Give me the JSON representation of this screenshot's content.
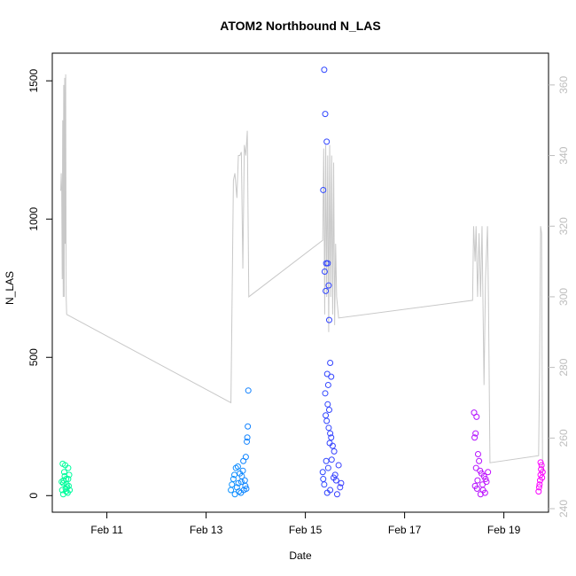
{
  "chart_data": {
    "type": "scatter",
    "title": "ATOM2 Northbound N_LAS",
    "xlabel": "Date",
    "ylabel": "N_LAS",
    "x_axis": {
      "ticks": [
        {
          "day": 11,
          "label": "Feb 11"
        },
        {
          "day": 13,
          "label": "Feb 13"
        },
        {
          "day": 15,
          "label": "Feb 15"
        },
        {
          "day": 17,
          "label": "Feb 17"
        },
        {
          "day": 19,
          "label": "Feb 19"
        }
      ],
      "range_days": [
        9.9,
        19.9
      ]
    },
    "y_axis_left": {
      "ticks": [
        0,
        500,
        1000,
        1500
      ],
      "range": [
        -60,
        1600
      ]
    },
    "y_axis_right": {
      "ticks": [
        240,
        260,
        280,
        300,
        320,
        340,
        360
      ],
      "range": [
        239,
        369
      ],
      "color": "#bdbdbd"
    },
    "colors": {
      "point_gradient": [
        "#00ff99",
        "#00bfff",
        "#1f4fff",
        "#7a1fff",
        "#ff00ff"
      ],
      "line": "#c8c8c8"
    },
    "series": [
      {
        "kind": "points",
        "points": [
          [
            10.1,
            20
          ],
          [
            10.12,
            45
          ],
          [
            10.14,
            85
          ],
          [
            10.16,
            110
          ],
          [
            10.18,
            60
          ],
          [
            10.2,
            30
          ],
          [
            10.22,
            100
          ],
          [
            10.24,
            75
          ],
          [
            10.11,
            115
          ],
          [
            10.13,
            55
          ],
          [
            10.17,
            25
          ],
          [
            10.21,
            10
          ],
          [
            10.19,
            40
          ],
          [
            10.15,
            70
          ],
          [
            10.23,
            35
          ],
          [
            10.09,
            50
          ],
          [
            10.25,
            20
          ],
          [
            10.12,
            5
          ],
          [
            10.18,
            15
          ],
          [
            10.22,
            60
          ],
          [
            13.5,
            20
          ],
          [
            13.55,
            60
          ],
          [
            13.6,
            100
          ],
          [
            13.62,
            30
          ],
          [
            13.65,
            45
          ],
          [
            13.68,
            80
          ],
          [
            13.7,
            10
          ],
          [
            13.72,
            70
          ],
          [
            13.75,
            125
          ],
          [
            13.78,
            55
          ],
          [
            13.8,
            140
          ],
          [
            13.82,
            195
          ],
          [
            13.83,
            210
          ],
          [
            13.84,
            250
          ],
          [
            13.85,
            380
          ],
          [
            13.58,
            5
          ],
          [
            13.66,
            15
          ],
          [
            13.74,
            90
          ],
          [
            13.52,
            40
          ],
          [
            13.79,
            35
          ],
          [
            13.81,
            25
          ],
          [
            13.64,
            105
          ],
          [
            13.71,
            50
          ],
          [
            13.76,
            20
          ],
          [
            13.57,
            75
          ],
          [
            15.38,
            1540
          ],
          [
            15.4,
            1380
          ],
          [
            15.43,
            1280
          ],
          [
            15.36,
            1105
          ],
          [
            15.42,
            840
          ],
          [
            15.45,
            840
          ],
          [
            15.39,
            810
          ],
          [
            15.47,
            760
          ],
          [
            15.41,
            740
          ],
          [
            15.48,
            635
          ],
          [
            15.5,
            480
          ],
          [
            15.44,
            440
          ],
          [
            15.52,
            430
          ],
          [
            15.46,
            400
          ],
          [
            15.4,
            370
          ],
          [
            15.45,
            330
          ],
          [
            15.48,
            310
          ],
          [
            15.41,
            290
          ],
          [
            15.43,
            270
          ],
          [
            15.47,
            245
          ],
          [
            15.5,
            225
          ],
          [
            15.52,
            210
          ],
          [
            15.49,
            190
          ],
          [
            15.55,
            180
          ],
          [
            15.58,
            160
          ],
          [
            15.35,
            85
          ],
          [
            15.42,
            125
          ],
          [
            15.46,
            100
          ],
          [
            15.53,
            130
          ],
          [
            15.6,
            75
          ],
          [
            15.38,
            40
          ],
          [
            15.5,
            20
          ],
          [
            15.62,
            55
          ],
          [
            15.67,
            110
          ],
          [
            15.7,
            30
          ],
          [
            15.44,
            10
          ],
          [
            15.57,
            65
          ],
          [
            15.64,
            5
          ],
          [
            15.36,
            60
          ],
          [
            15.72,
            45
          ],
          [
            18.4,
            300
          ],
          [
            18.45,
            285
          ],
          [
            18.43,
            225
          ],
          [
            18.41,
            210
          ],
          [
            18.48,
            150
          ],
          [
            18.5,
            125
          ],
          [
            18.44,
            100
          ],
          [
            18.52,
            90
          ],
          [
            18.55,
            80
          ],
          [
            18.6,
            70
          ],
          [
            18.47,
            55
          ],
          [
            18.42,
            35
          ],
          [
            18.58,
            20
          ],
          [
            18.62,
            10
          ],
          [
            18.65,
            50
          ],
          [
            18.53,
            5
          ],
          [
            18.68,
            85
          ],
          [
            18.46,
            25
          ],
          [
            18.57,
            40
          ],
          [
            18.63,
            60
          ],
          [
            19.7,
            15
          ],
          [
            19.72,
            40
          ],
          [
            19.74,
            75
          ],
          [
            19.75,
            95
          ],
          [
            19.76,
            110
          ],
          [
            19.73,
            55
          ],
          [
            19.71,
            30
          ],
          [
            19.77,
            65
          ],
          [
            19.78,
            85
          ],
          [
            19.74,
            120
          ]
        ]
      },
      {
        "kind": "line",
        "axis": "right",
        "points": [
          [
            10.07,
            330
          ],
          [
            10.08,
            335
          ],
          [
            10.09,
            330
          ],
          [
            10.1,
            305
          ],
          [
            10.11,
            350
          ],
          [
            10.12,
            300
          ],
          [
            10.13,
            360
          ],
          [
            10.14,
            300
          ],
          [
            10.15,
            362
          ],
          [
            10.16,
            315
          ],
          [
            10.17,
            363
          ],
          [
            10.18,
            300
          ],
          [
            10.19,
            295
          ],
          [
            13.5,
            270
          ],
          [
            13.55,
            333
          ],
          [
            13.58,
            335
          ],
          [
            13.62,
            328
          ],
          [
            13.65,
            340
          ],
          [
            13.68,
            340
          ],
          [
            13.71,
            341
          ],
          [
            13.74,
            308
          ],
          [
            13.77,
            343
          ],
          [
            13.8,
            340
          ],
          [
            13.83,
            347
          ],
          [
            13.86,
            300
          ],
          [
            15.35,
            316
          ],
          [
            15.37,
            342
          ],
          [
            15.39,
            295
          ],
          [
            15.41,
            343
          ],
          [
            15.43,
            300
          ],
          [
            15.45,
            340
          ],
          [
            15.47,
            290
          ],
          [
            15.49,
            343
          ],
          [
            15.51,
            300
          ],
          [
            15.53,
            340
          ],
          [
            15.55,
            295
          ],
          [
            15.57,
            338
          ],
          [
            15.59,
            292
          ],
          [
            15.61,
            315
          ],
          [
            15.63,
            300
          ],
          [
            15.67,
            294
          ],
          [
            18.37,
            299
          ],
          [
            18.39,
            320
          ],
          [
            18.42,
            310
          ],
          [
            18.44,
            320
          ],
          [
            18.47,
            300
          ],
          [
            18.5,
            318
          ],
          [
            18.53,
            300
          ],
          [
            18.56,
            320
          ],
          [
            18.6,
            275
          ],
          [
            18.63,
            305
          ],
          [
            18.67,
            320
          ],
          [
            18.69,
            299
          ],
          [
            18.72,
            253
          ],
          [
            19.7,
            255
          ],
          [
            19.72,
            280
          ],
          [
            19.74,
            320
          ],
          [
            19.76,
            318
          ],
          [
            19.78,
            250
          ]
        ]
      }
    ]
  }
}
